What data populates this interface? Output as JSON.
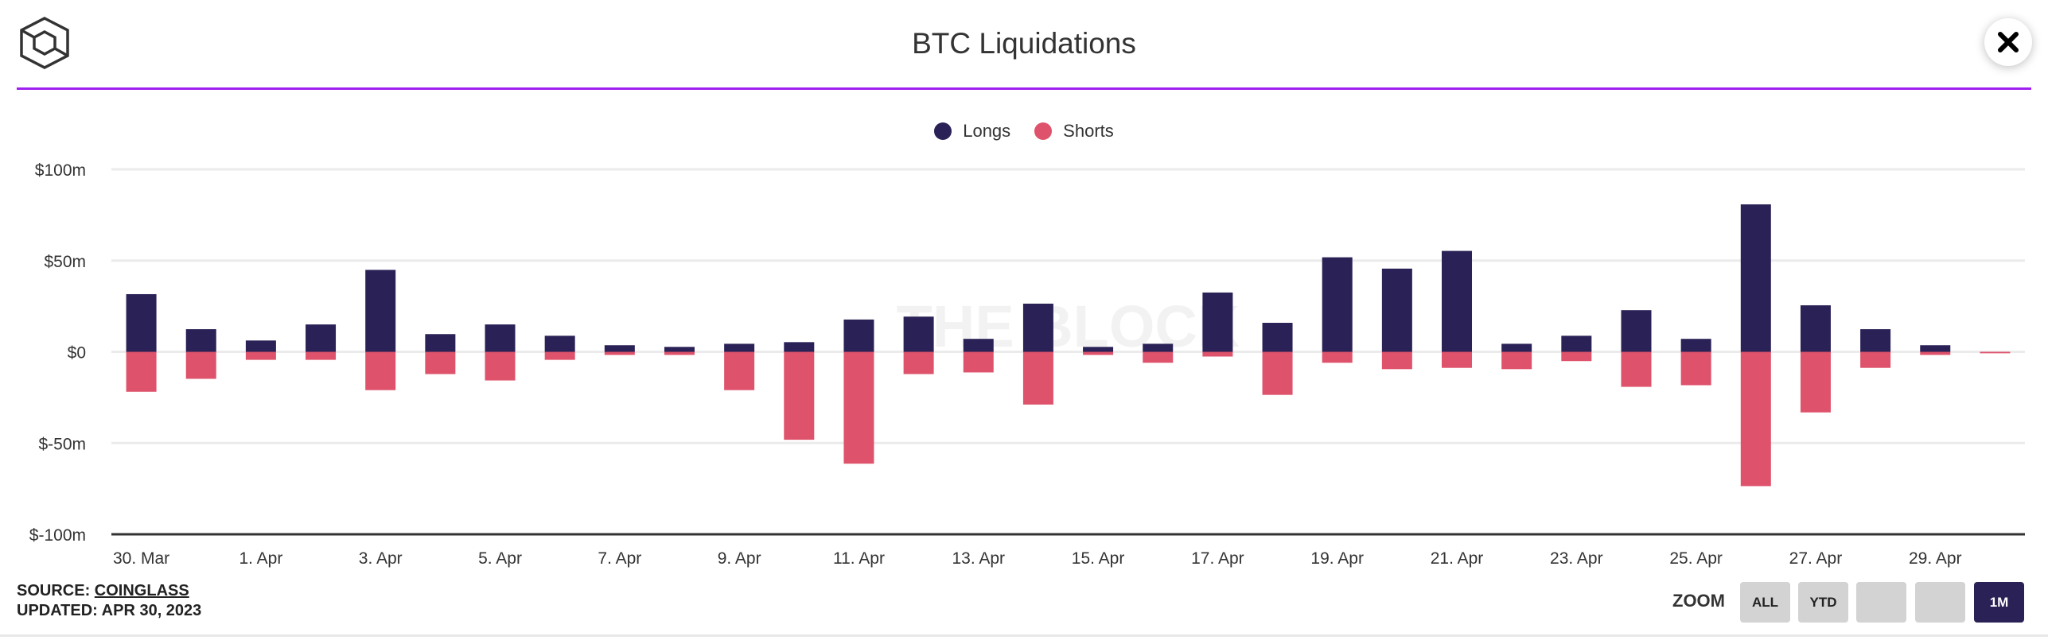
{
  "header": {
    "title": "BTC Liquidations",
    "brand_color": "#a020f0"
  },
  "icons": {
    "logo": "the-block-cube-logo",
    "close": "close-icon"
  },
  "watermark": "THE BLOCK",
  "chart_data": {
    "type": "bar",
    "stacked": true,
    "title": "BTC Liquidations",
    "categories": [
      "30. Mar",
      "31. Mar",
      "1. Apr",
      "2. Apr",
      "3. Apr",
      "4. Apr",
      "5. Apr",
      "6. Apr",
      "7. Apr",
      "8. Apr",
      "9. Apr",
      "10. Apr",
      "11. Apr",
      "12. Apr",
      "13. Apr",
      "14. Apr",
      "15. Apr",
      "16. Apr",
      "17. Apr",
      "18. Apr",
      "19. Apr",
      "20. Apr",
      "21. Apr",
      "22. Apr",
      "23. Apr",
      "24. Apr",
      "25. Apr",
      "26. Apr",
      "27. Apr",
      "28. Apr",
      "29. Apr",
      "30. Apr"
    ],
    "x_tick_labels": [
      "30. Mar",
      "1. Apr",
      "3. Apr",
      "5. Apr",
      "7. Apr",
      "9. Apr",
      "11. Apr",
      "13. Apr",
      "15. Apr",
      "17. Apr",
      "19. Apr",
      "21. Apr",
      "23. Apr",
      "25. Apr",
      "27. Apr",
      "29. Apr"
    ],
    "series": [
      {
        "name": "Longs",
        "color": "#2a2156",
        "values": [
          31.6,
          12.4,
          6.2,
          15.0,
          44.9,
          9.7,
          15.0,
          8.8,
          3.6,
          2.7,
          4.4,
          5.3,
          17.7,
          19.3,
          7.1,
          26.4,
          2.7,
          4.4,
          32.5,
          15.9,
          51.8,
          45.6,
          55.3,
          4.4,
          8.8,
          22.8,
          7.1,
          80.8,
          25.5,
          12.4,
          3.6,
          0
        ]
      },
      {
        "name": "Shorts",
        "color": "#de526b",
        "values": [
          -21.9,
          -14.8,
          -4.4,
          -4.4,
          -21.0,
          -12.2,
          -15.7,
          -4.4,
          -1.7,
          -1.7,
          -21.0,
          -48.2,
          -61.3,
          -12.2,
          -11.3,
          -28.9,
          -1.7,
          -6.0,
          -2.6,
          -23.6,
          -6.0,
          -9.5,
          -8.8,
          -9.5,
          -5.1,
          -19.2,
          -18.3,
          -73.6,
          -33.2,
          -8.8,
          -1.7,
          -0.8
        ]
      }
    ],
    "ylim": [
      -100,
      100
    ],
    "y_ticks": [
      100,
      50,
      0,
      -50,
      -100
    ],
    "y_tick_labels": [
      "$100m",
      "$50m",
      "$0",
      "$-50m",
      "$-100m"
    ],
    "xlabel": "",
    "ylabel": "",
    "grid": true,
    "legend": "top-center"
  },
  "footer": {
    "source_label": "SOURCE:",
    "source_link": "COINGLASS",
    "updated": "UPDATED: APR 30, 2023"
  },
  "zoom": {
    "label": "ZOOM",
    "buttons": [
      {
        "label": "ALL",
        "active": false
      },
      {
        "label": "YTD",
        "active": false
      },
      {
        "label": "",
        "active": false
      },
      {
        "label": "",
        "active": false
      },
      {
        "label": "1M",
        "active": true
      }
    ]
  }
}
